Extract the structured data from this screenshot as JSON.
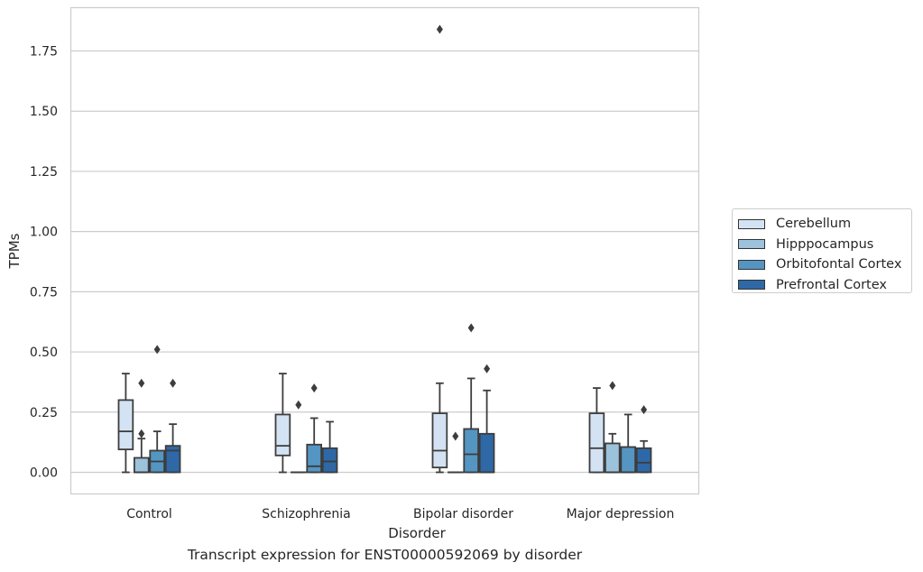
{
  "caption": "Transcript expression for ENST00000592069 by disorder",
  "chart_data": {
    "type": "box",
    "title": "",
    "xlabel": "Disorder",
    "ylabel": "TPMs",
    "ylim": [
      -0.09,
      1.93
    ],
    "yticks": [
      0.0,
      0.25,
      0.5,
      0.75,
      1.0,
      1.25,
      1.5,
      1.75
    ],
    "ytick_labels": [
      "0.00",
      "0.25",
      "0.50",
      "0.75",
      "1.00",
      "1.25",
      "1.50",
      "1.75"
    ],
    "grid": "horizontal",
    "legend_position": "right",
    "categories": [
      "Control",
      "Schizophrenia",
      "Bipolar disorder",
      "Major depression"
    ],
    "series": [
      {
        "name": "Cerebellum",
        "color": "#d4e3f3",
        "boxes": [
          {
            "whisker_low": 0.0,
            "q1": 0.095,
            "median": 0.17,
            "q3": 0.3,
            "whisker_high": 0.41,
            "outliers": []
          },
          {
            "whisker_low": 0.0,
            "q1": 0.07,
            "median": 0.11,
            "q3": 0.24,
            "whisker_high": 0.41,
            "outliers": []
          },
          {
            "whisker_low": 0.0,
            "q1": 0.02,
            "median": 0.09,
            "q3": 0.245,
            "whisker_high": 0.37,
            "outliers": [
              1.84
            ]
          },
          {
            "whisker_low": 0.0,
            "q1": 0.0,
            "median": 0.1,
            "q3": 0.245,
            "whisker_high": 0.35,
            "outliers": []
          }
        ]
      },
      {
        "name": "Hipppocampus",
        "color": "#9cc2dc",
        "boxes": [
          {
            "whisker_low": 0.0,
            "q1": 0.0,
            "median": 0.0,
            "q3": 0.06,
            "whisker_high": 0.14,
            "outliers": [
              0.16,
              0.37
            ]
          },
          {
            "whisker_low": 0.0,
            "q1": 0.0,
            "median": 0.0,
            "q3": 0.0,
            "whisker_high": 0.0,
            "outliers": [
              0.28
            ]
          },
          {
            "whisker_low": 0.0,
            "q1": 0.0,
            "median": 0.0,
            "q3": 0.0,
            "whisker_high": 0.0,
            "outliers": [
              0.15
            ]
          },
          {
            "whisker_low": 0.0,
            "q1": 0.0,
            "median": 0.0,
            "q3": 0.12,
            "whisker_high": 0.16,
            "outliers": [
              0.36
            ]
          }
        ]
      },
      {
        "name": "Orbitofontal Cortex",
        "color": "#5495c2",
        "boxes": [
          {
            "whisker_low": 0.0,
            "q1": 0.0,
            "median": 0.045,
            "q3": 0.09,
            "whisker_high": 0.17,
            "outliers": [
              0.51
            ]
          },
          {
            "whisker_low": 0.0,
            "q1": 0.0,
            "median": 0.025,
            "q3": 0.115,
            "whisker_high": 0.225,
            "outliers": [
              0.35
            ]
          },
          {
            "whisker_low": 0.0,
            "q1": 0.0,
            "median": 0.075,
            "q3": 0.18,
            "whisker_high": 0.39,
            "outliers": [
              0.6
            ]
          },
          {
            "whisker_low": 0.0,
            "q1": 0.0,
            "median": 0.0,
            "q3": 0.105,
            "whisker_high": 0.24,
            "outliers": []
          }
        ]
      },
      {
        "name": "Prefrontal Cortex",
        "color": "#2e68a6",
        "boxes": [
          {
            "whisker_low": 0.0,
            "q1": 0.0,
            "median": 0.09,
            "q3": 0.11,
            "whisker_high": 0.2,
            "outliers": [
              0.37
            ]
          },
          {
            "whisker_low": 0.0,
            "q1": 0.0,
            "median": 0.045,
            "q3": 0.1,
            "whisker_high": 0.21,
            "outliers": []
          },
          {
            "whisker_low": 0.0,
            "q1": 0.0,
            "median": 0.0,
            "q3": 0.16,
            "whisker_high": 0.34,
            "outliers": [
              0.43
            ]
          },
          {
            "whisker_low": 0.0,
            "q1": 0.0,
            "median": 0.04,
            "q3": 0.1,
            "whisker_high": 0.13,
            "outliers": [
              0.26
            ]
          }
        ]
      }
    ]
  }
}
